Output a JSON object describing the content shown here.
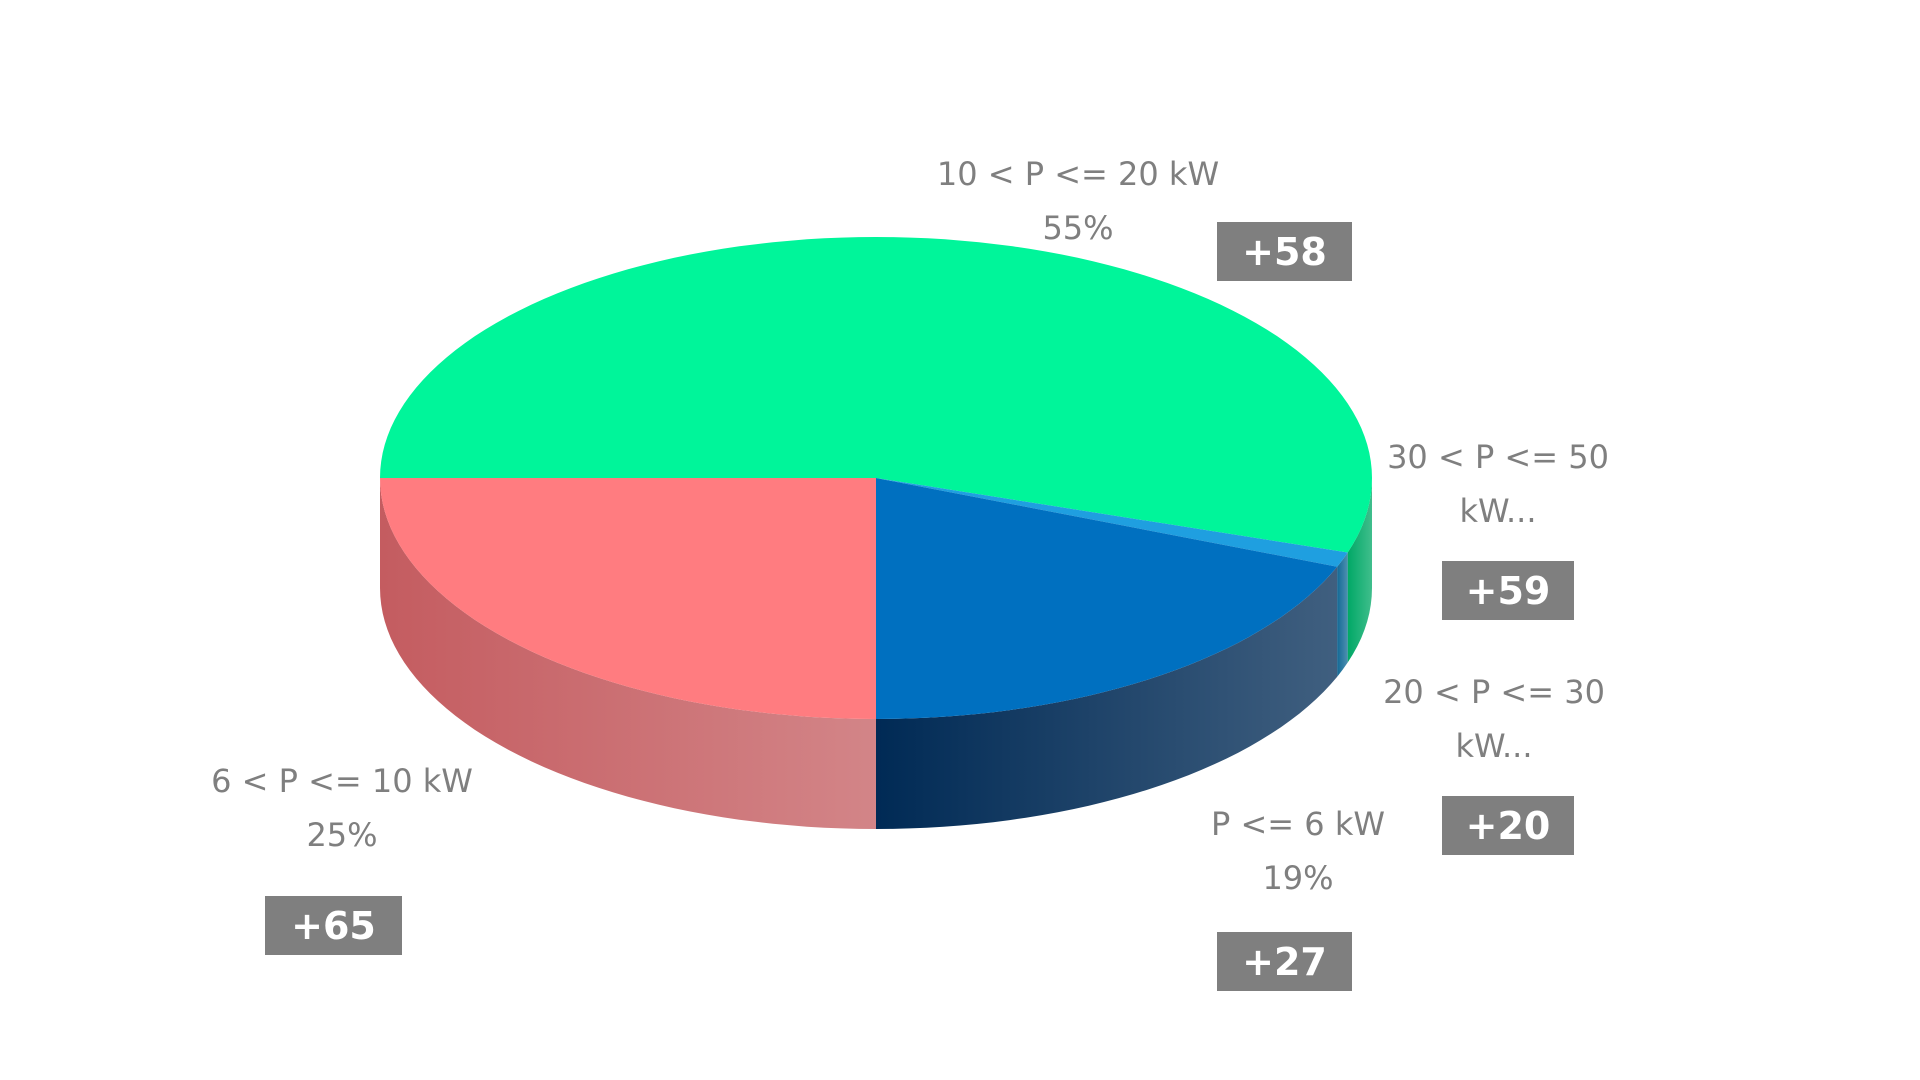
{
  "chart_data": {
    "type": "pie3d",
    "categories": [
      "10 < P <= 20 kW",
      "30 < P <= 50 kW...",
      "20 < P <= 30 kW...",
      "P <= 6 kW",
      "6 < P <= 10 kW"
    ],
    "values": [
      55,
      1,
      0,
      19,
      25
    ],
    "value_labels": [
      "55%",
      null,
      null,
      "19%",
      "25%"
    ],
    "colors": [
      "#00f59a",
      "#1f9fe0",
      "#2e75b6",
      "#0070c0",
      "#ff7c80"
    ],
    "side_colors": [
      "#00a866",
      "#136a96",
      "#1d4f7c",
      "#002a55",
      "#c45c60"
    ],
    "deltas": [
      "+58",
      "+59",
      "+20",
      "+27",
      "+65"
    ],
    "start_angle": 270
  }
}
